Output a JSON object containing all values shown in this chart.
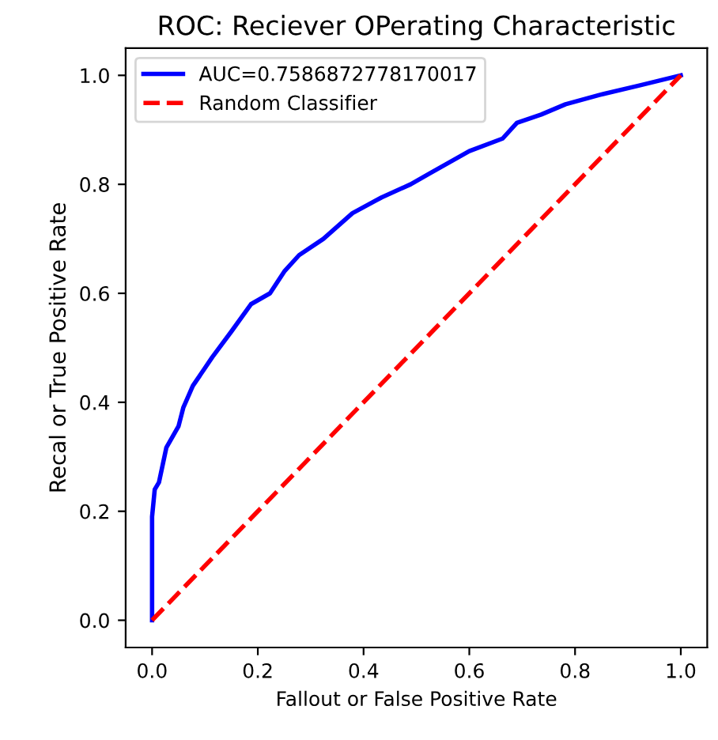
{
  "chart_data": {
    "type": "line",
    "title": "ROC: Reciever OPerating Characteristic",
    "xlabel": "Fallout or False Positive Rate",
    "ylabel": "Recal or True Positive Rate",
    "xlim": [
      -0.05,
      1.05
    ],
    "ylim": [
      -0.05,
      1.05
    ],
    "xticks": [
      {
        "value": 0,
        "label": "0.0"
      },
      {
        "value": 0.2,
        "label": "0.2"
      },
      {
        "value": 0.4,
        "label": "0.4"
      },
      {
        "value": 0.6,
        "label": "0.6"
      },
      {
        "value": 0.8,
        "label": "0.8"
      },
      {
        "value": 1,
        "label": "1.0"
      }
    ],
    "yticks": [
      {
        "value": 0,
        "label": "0.0"
      },
      {
        "value": 0.2,
        "label": "0.2"
      },
      {
        "value": 0.4,
        "label": "0.4"
      },
      {
        "value": 0.6,
        "label": "0.6"
      },
      {
        "value": 0.8,
        "label": "0.8"
      },
      {
        "value": 1,
        "label": "1.0"
      }
    ],
    "grid": false,
    "legend": "top left",
    "series": [
      {
        "name": "AUC=0.7586872778170017",
        "color": "#0000ff",
        "line_style": "solid",
        "x": [
          0,
          0,
          0.005,
          0.013,
          0.027,
          0.05,
          0.059,
          0.077,
          0.114,
          0.15,
          0.187,
          0.223,
          0.25,
          0.278,
          0.324,
          0.379,
          0.434,
          0.489,
          0.525,
          0.6,
          0.663,
          0.69,
          0.736,
          0.782,
          0.846,
          0.92,
          1
        ],
        "values": [
          0,
          0.19,
          0.24,
          0.253,
          0.317,
          0.356,
          0.39,
          0.43,
          0.483,
          0.53,
          0.58,
          0.6,
          0.64,
          0.67,
          0.7,
          0.747,
          0.776,
          0.8,
          0.82,
          0.861,
          0.884,
          0.913,
          0.928,
          0.947,
          0.964,
          0.981,
          1
        ]
      },
      {
        "name": "Random Classifier",
        "color": "#ff0000",
        "line_style": "dashed",
        "x": [
          0,
          1
        ],
        "values": [
          0,
          1
        ]
      }
    ]
  }
}
